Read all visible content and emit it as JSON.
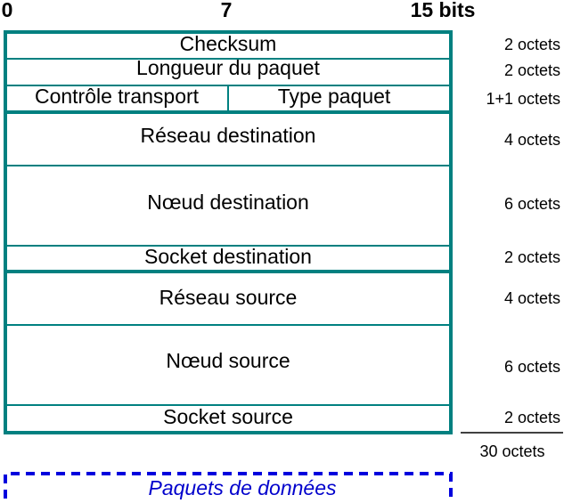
{
  "bit_labels": [
    "0",
    "7",
    "15 bits"
  ],
  "rows": [
    {
      "fields": [
        "Checksum"
      ],
      "size": "2 octets"
    },
    {
      "fields": [
        "Longueur du paquet"
      ],
      "size": "2 octets"
    },
    {
      "fields": [
        "Contrôle transport",
        "Type paquet"
      ],
      "size": "1+1 octets"
    },
    {
      "fields": [
        "Réseau destination"
      ],
      "size": "4 octets"
    },
    {
      "fields": [
        "Nœud destination"
      ],
      "size": "6 octets"
    },
    {
      "fields": [
        "Socket destination"
      ],
      "size": "2 octets"
    },
    {
      "fields": [
        "Réseau source"
      ],
      "size": "4 octets"
    },
    {
      "fields": [
        "Nœud source"
      ],
      "size": "6 octets"
    },
    {
      "fields": [
        "Socket source"
      ],
      "size": "2 octets"
    }
  ],
  "total": "30 octets",
  "data_label": "Paquets de données"
}
